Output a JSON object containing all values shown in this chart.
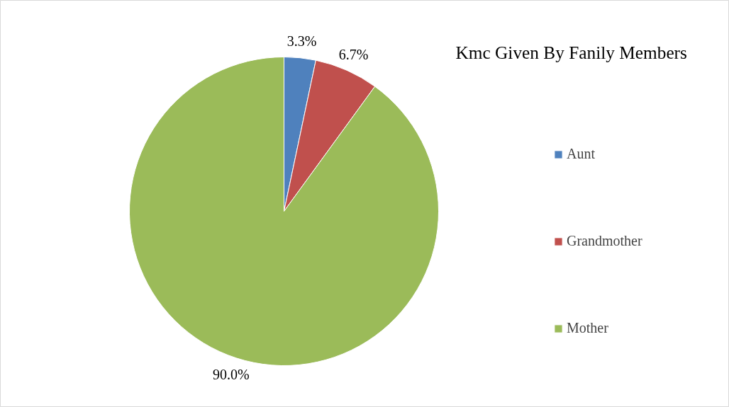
{
  "chart_data": {
    "type": "pie",
    "title": "Kmc Given By Fanily Members",
    "categories": [
      "Aunt",
      "Grandmother",
      "Mother"
    ],
    "values": [
      3.3,
      6.7,
      90.0
    ],
    "colors": [
      "#4f81bd",
      "#c0504d",
      "#9bbb59"
    ],
    "value_labels": [
      "3.3%",
      "6.7%",
      "90.0%"
    ],
    "legend": "right"
  }
}
